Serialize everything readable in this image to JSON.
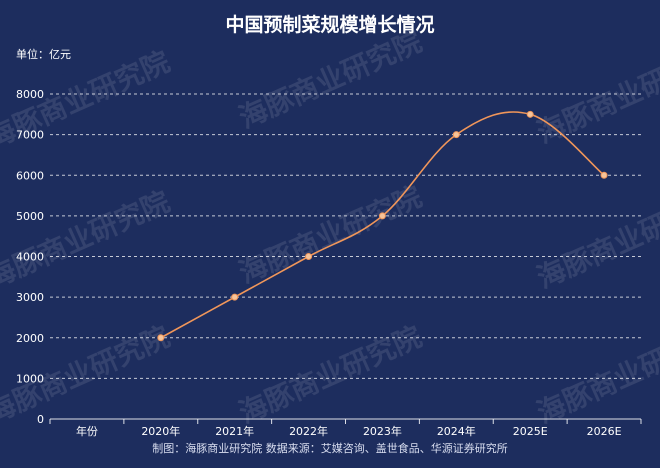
{
  "chart_data": {
    "type": "line",
    "title": "中国预制菜规模增长情况",
    "unit_label": "单位：亿元",
    "categories": [
      "年份",
      "2020年",
      "2021年",
      "2022年",
      "2023年",
      "2024年",
      "2025E",
      "2026E"
    ],
    "x": [
      "2020年",
      "2021年",
      "2022年",
      "2023年",
      "2024年",
      "2025E",
      "2026E"
    ],
    "series": [
      {
        "values": [
          2000,
          3000,
          4000,
          5000,
          7000,
          7500,
          6000
        ]
      }
    ],
    "yticks": [
      0,
      1000,
      2000,
      3000,
      4000,
      5000,
      6000,
      7000,
      8000
    ],
    "ylim": [
      0,
      8000
    ],
    "grid": true,
    "line_color": "#f0965a",
    "point_color": "#f6c49a",
    "source": "制图：海豚商业研究院 数据来源：艾媒咨询、盖世食品、华源证券研究所"
  },
  "watermark": "海豚商业研究院"
}
